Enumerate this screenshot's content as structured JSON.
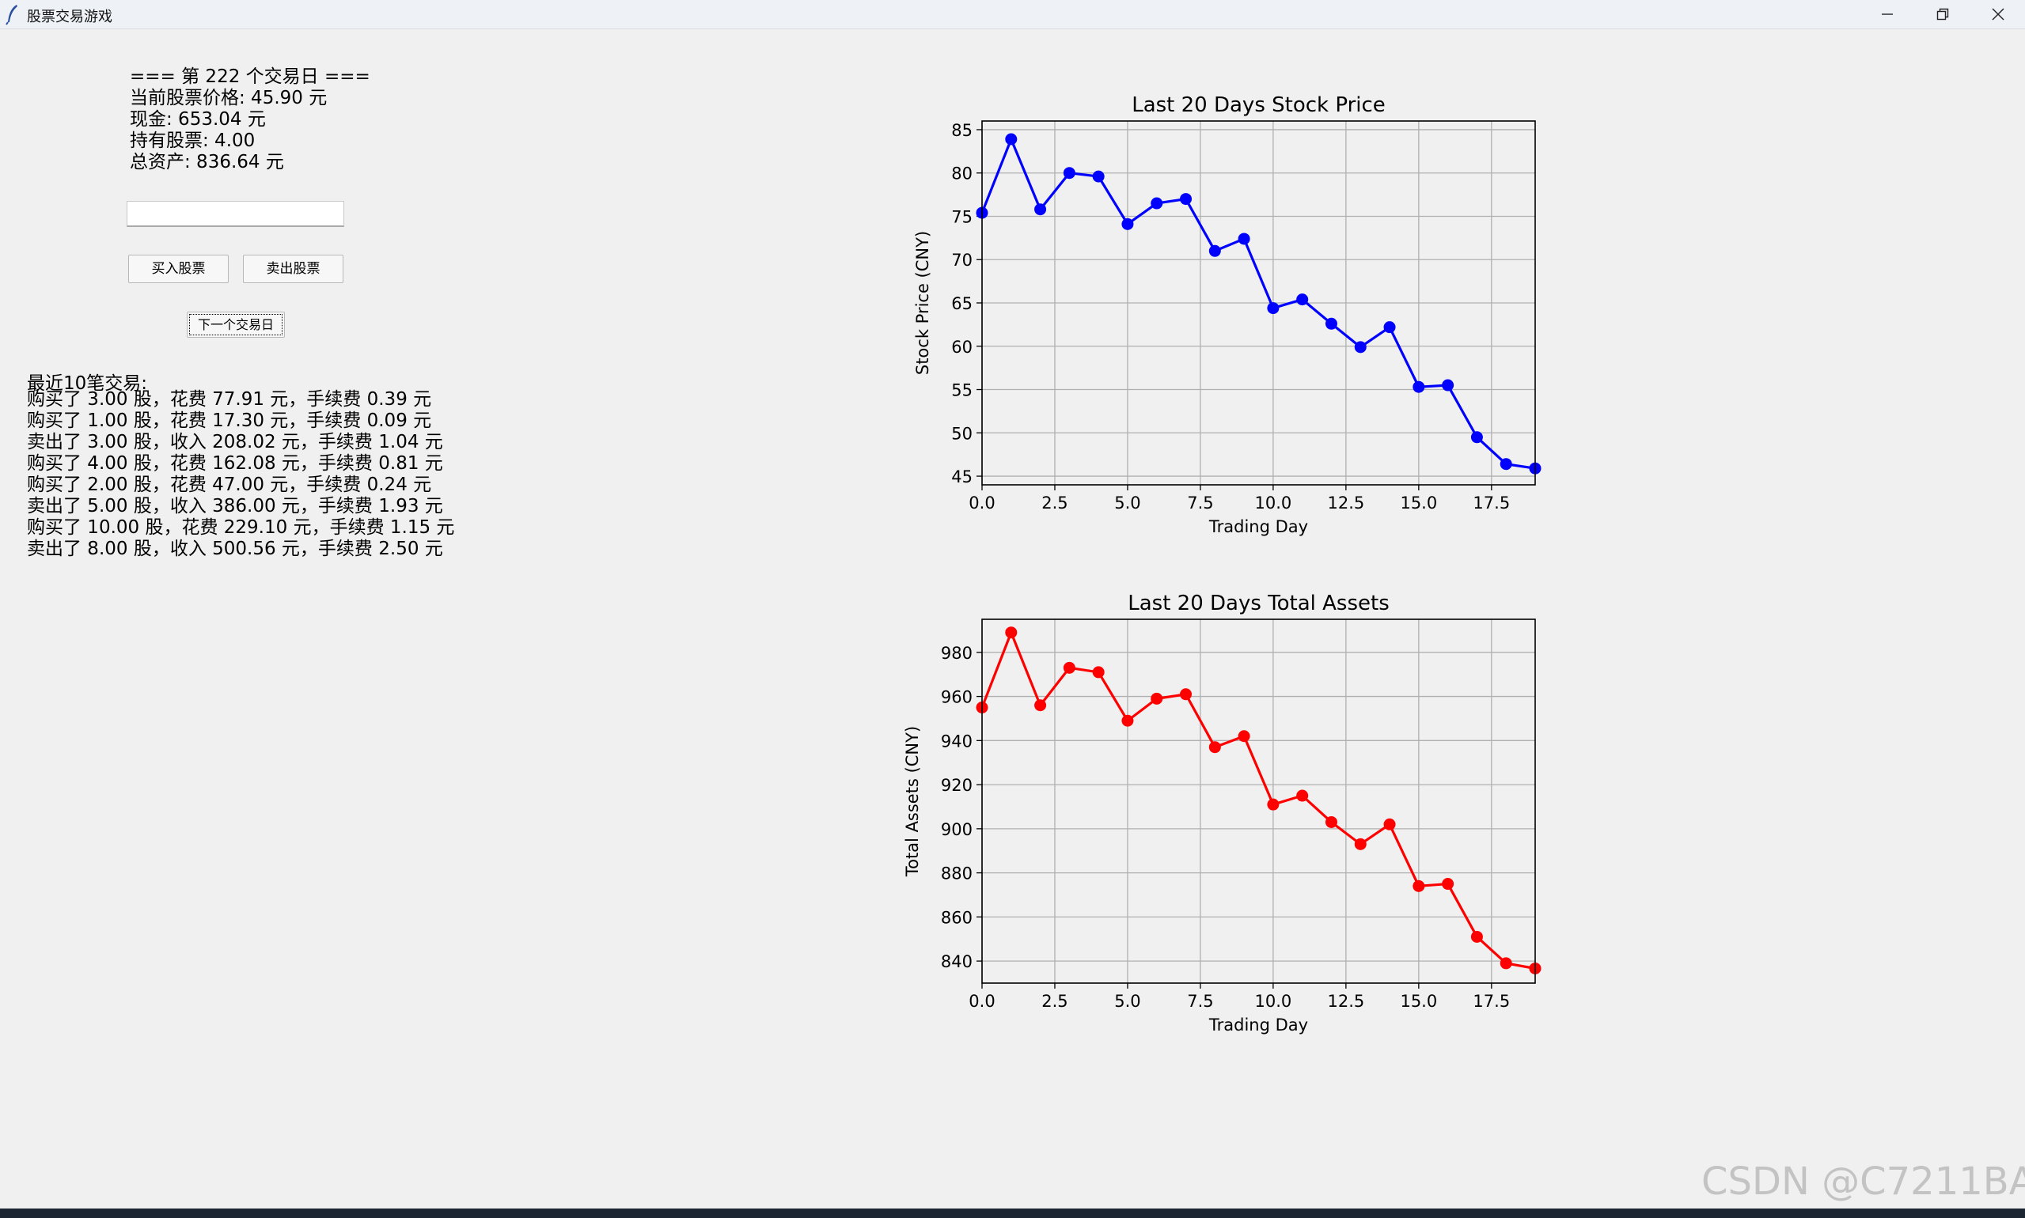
{
  "window": {
    "title": "股票交易游戏"
  },
  "status": {
    "day_header": "=== 第 222 个交易日 ===",
    "price": "当前股票价格: 45.90 元",
    "cash": "现金: 653.04 元",
    "shares": "持有股票: 4.00",
    "total": "总资产: 836.64 元"
  },
  "trade_input": {
    "value": ""
  },
  "buttons": {
    "buy": "买入股票",
    "sell": "卖出股票",
    "next_day": "下一个交易日"
  },
  "trades": {
    "title": "最近10笔交易:",
    "items": [
      "购买了 3.00 股，花费 77.91 元，手续费 0.39 元",
      "购买了 1.00 股，花费 17.30 元，手续费 0.09 元",
      "卖出了 3.00 股，收入 208.02 元，手续费 1.04 元",
      "购买了 4.00 股，花费 162.08 元，手续费 0.81 元",
      "购买了 2.00 股，花费 47.00 元，手续费 0.24 元",
      "卖出了 5.00 股，收入 386.00 元，手续费 1.93 元",
      "购买了 10.00 股，花费 229.10 元，手续费 1.15 元",
      "卖出了 8.00 股，收入 500.56 元，手续费 2.50 元"
    ]
  },
  "chart_data": [
    {
      "type": "line",
      "title": "Last 20 Days Stock Price",
      "xlabel": "Trading Day",
      "ylabel": "Stock Price (CNY)",
      "x": [
        0,
        1,
        2,
        3,
        4,
        5,
        6,
        7,
        8,
        9,
        10,
        11,
        12,
        13,
        14,
        15,
        16,
        17,
        18,
        19
      ],
      "series": [
        {
          "values": [
            75.4,
            83.9,
            75.8,
            80.0,
            79.6,
            74.1,
            76.5,
            77.0,
            71.0,
            72.4,
            64.4,
            65.4,
            62.6,
            59.9,
            62.2,
            55.3,
            55.5,
            49.5,
            46.4,
            45.9
          ]
        }
      ],
      "xlim": [
        0,
        19
      ],
      "ylim": [
        44,
        86
      ],
      "xticks": [
        "0.0",
        "2.5",
        "5.0",
        "7.5",
        "10.0",
        "12.5",
        "15.0",
        "17.5"
      ],
      "xtick_values": [
        0,
        2.5,
        5,
        7.5,
        10,
        12.5,
        15,
        17.5
      ],
      "yticks": [
        45,
        50,
        55,
        60,
        65,
        70,
        75,
        80,
        85
      ],
      "color": "#0000ff",
      "grid": true
    },
    {
      "type": "line",
      "title": "Last 20 Days Total Assets",
      "xlabel": "Trading Day",
      "ylabel": "Total Assets (CNY)",
      "x": [
        0,
        1,
        2,
        3,
        4,
        5,
        6,
        7,
        8,
        9,
        10,
        11,
        12,
        13,
        14,
        15,
        16,
        17,
        18,
        19
      ],
      "series": [
        {
          "values": [
            955,
            989,
            956,
            973,
            971,
            949,
            959,
            961,
            937,
            942,
            911,
            915,
            903,
            893,
            902,
            874,
            875,
            851,
            839,
            836.64
          ]
        }
      ],
      "xlim": [
        0,
        19
      ],
      "ylim": [
        830,
        995
      ],
      "xticks": [
        "0.0",
        "2.5",
        "5.0",
        "7.5",
        "10.0",
        "12.5",
        "15.0",
        "17.5"
      ],
      "xtick_values": [
        0,
        2.5,
        5,
        7.5,
        10,
        12.5,
        15,
        17.5
      ],
      "yticks": [
        840,
        860,
        880,
        900,
        920,
        940,
        960,
        980
      ],
      "color": "#ff0000",
      "grid": true
    }
  ],
  "watermark": "CSDN @C7211BA"
}
